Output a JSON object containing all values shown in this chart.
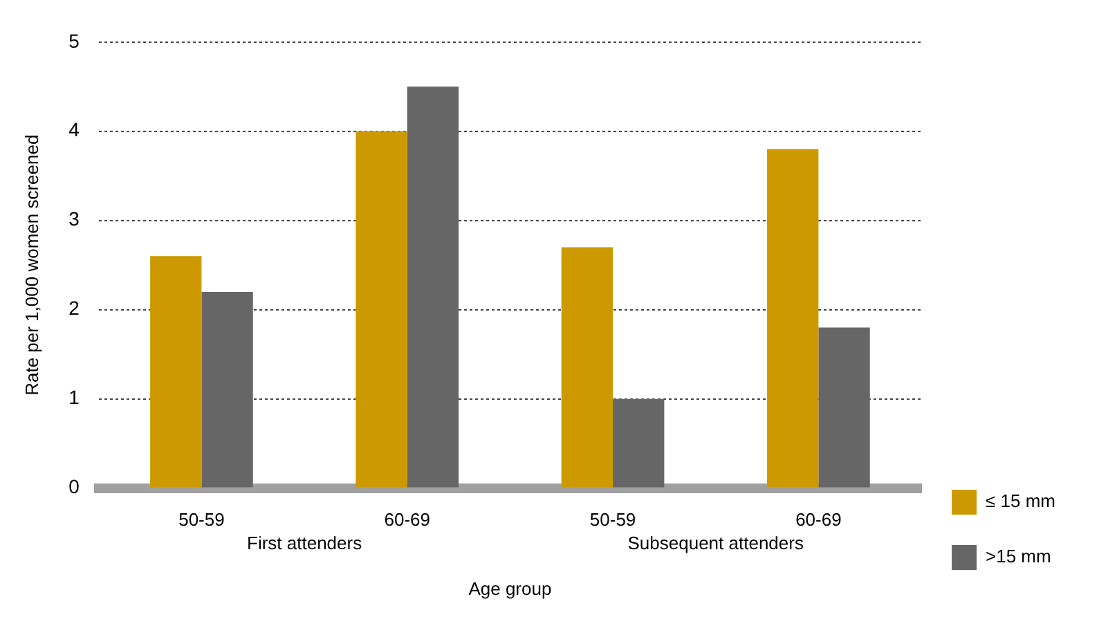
{
  "chart_data": {
    "type": "bar",
    "xlabel": "Age group",
    "ylabel": "Rate per 1,000 women screened",
    "categories": [
      "50-59",
      "60-69",
      "50-59",
      "60-69"
    ],
    "series": [
      {
        "name": "≤ 15 mm",
        "color": "#cc9900",
        "values": [
          2.6,
          4.0,
          2.7,
          3.8
        ]
      },
      {
        "name": ">15 mm",
        "color": "#666666",
        "values": [
          2.2,
          4.5,
          1.0,
          1.8
        ]
      }
    ],
    "ylim": [
      0,
      5
    ],
    "yticks": [
      0,
      1,
      2,
      3,
      4,
      5
    ],
    "grid": "y",
    "legend": "right",
    "annotations": [
      "First attenders",
      "Subsequent attenders"
    ]
  }
}
